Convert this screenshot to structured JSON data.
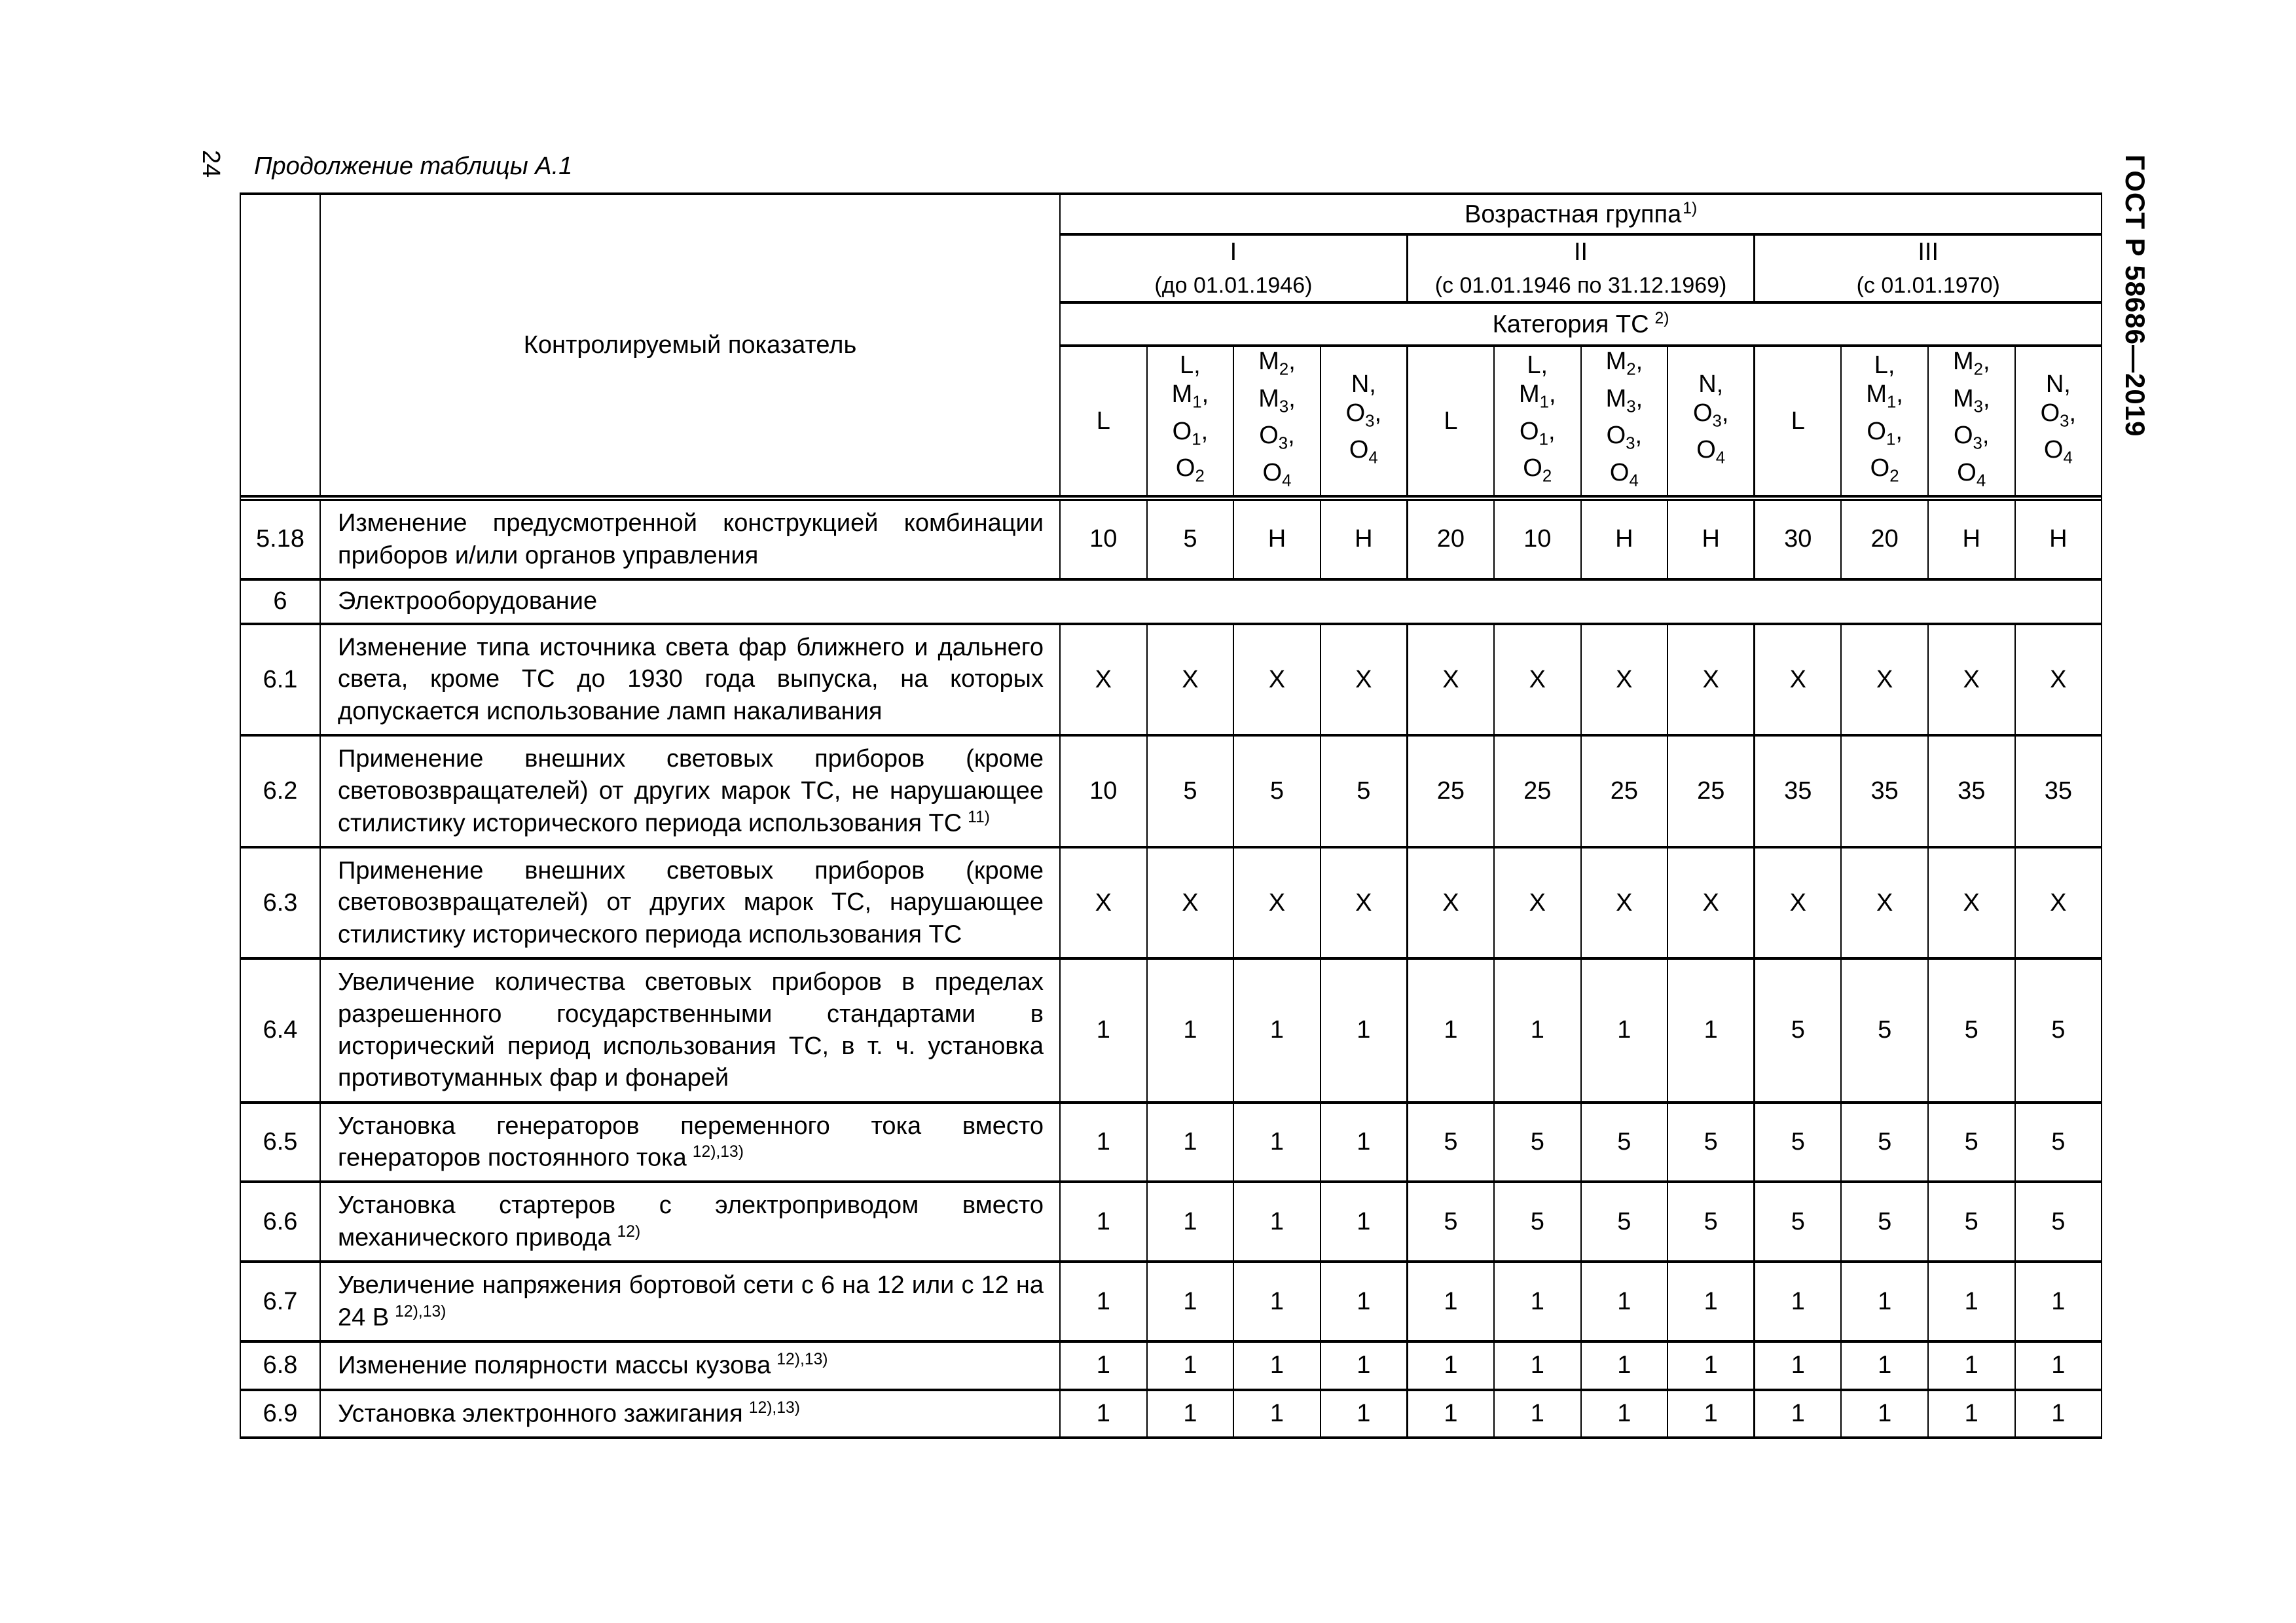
{
  "page": {
    "number": "24",
    "title": "Продолжение таблицы А.1",
    "standard": "ГОСТ Р 58686—2019"
  },
  "table": {
    "header": {
      "indicator": "Контролируемый показатель",
      "age_group": "Возрастная группа",
      "age_group_sup": "1)",
      "groups": [
        {
          "numeral": "I",
          "range": "(до 01.01.1946)"
        },
        {
          "numeral": "II",
          "range": "(с 01.01.1946 по 31.12.1969)"
        },
        {
          "numeral": "III",
          "range": "(с 01.01.1970)"
        }
      ],
      "category": "Категория ТС",
      "category_sup": "2)",
      "category_columns": [
        [
          {
            "t": "L"
          }
        ],
        [
          {
            "t": "L,"
          },
          {
            "t": "M",
            "s": "1",
            "p": ","
          },
          {
            "t": "O",
            "s": "1",
            "p": ","
          },
          {
            "t": "O",
            "s": "2"
          }
        ],
        [
          {
            "t": "M",
            "s": "2",
            "p": ","
          },
          {
            "t": "M",
            "s": "3",
            "p": ","
          },
          {
            "t": "O",
            "s": "3",
            "p": ","
          },
          {
            "t": "O",
            "s": "4"
          }
        ],
        [
          {
            "t": "N,"
          },
          {
            "t": "O",
            "s": "3",
            "p": ","
          },
          {
            "t": "O",
            "s": "4"
          }
        ]
      ]
    },
    "rows": [
      {
        "num": "5.18",
        "label": "Изменение предусмотренной конструкцией комбинации приборов и/или органов управления",
        "sup": "",
        "values": [
          "10",
          "5",
          "Н",
          "Н",
          "20",
          "10",
          "Н",
          "Н",
          "30",
          "20",
          "Н",
          "Н"
        ]
      },
      {
        "num": "6",
        "label": "Электрооборудование",
        "section": true
      },
      {
        "num": "6.1",
        "label": "Изменение типа источника света фар ближнего и дальнего света, кроме ТС до 1930 года выпуска, на которых допускается использование ламп накаливания",
        "sup": "",
        "values": [
          "Х",
          "Х",
          "Х",
          "Х",
          "Х",
          "Х",
          "Х",
          "Х",
          "Х",
          "Х",
          "Х",
          "Х"
        ]
      },
      {
        "num": "6.2",
        "label": "Применение внешних световых приборов (кроме световозвращателей) от других марок ТС, не нарушающее стилистику исторического периода использования ТС",
        "sup": "11)",
        "values": [
          "10",
          "5",
          "5",
          "5",
          "25",
          "25",
          "25",
          "25",
          "35",
          "35",
          "35",
          "35"
        ]
      },
      {
        "num": "6.3",
        "label": "Применение внешних световых приборов (кроме световозвращателей) от других марок ТС, нарушающее стилистику исторического периода использования ТС",
        "sup": "",
        "values": [
          "Х",
          "Х",
          "Х",
          "Х",
          "Х",
          "Х",
          "Х",
          "Х",
          "Х",
          "Х",
          "Х",
          "Х"
        ]
      },
      {
        "num": "6.4",
        "label": "Увеличение количества световых приборов в пределах разрешенного государственными стандартами в исторический период использования ТС, в т. ч. установка противотуманных фар и фонарей",
        "sup": "",
        "values": [
          "1",
          "1",
          "1",
          "1",
          "1",
          "1",
          "1",
          "1",
          "5",
          "5",
          "5",
          "5"
        ]
      },
      {
        "num": "6.5",
        "label": "Установка генераторов переменного тока вместо генераторов постоянного тока",
        "sup": "12),13)",
        "values": [
          "1",
          "1",
          "1",
          "1",
          "5",
          "5",
          "5",
          "5",
          "5",
          "5",
          "5",
          "5"
        ]
      },
      {
        "num": "6.6",
        "label": "Установка стартеров с электроприводом вместо механического привода",
        "sup": "12)",
        "values": [
          "1",
          "1",
          "1",
          "1",
          "5",
          "5",
          "5",
          "5",
          "5",
          "5",
          "5",
          "5"
        ]
      },
      {
        "num": "6.7",
        "label": "Увеличение напряжения бортовой сети с 6 на 12 или с 12 на 24 В",
        "sup": "12),13)",
        "values": [
          "1",
          "1",
          "1",
          "1",
          "1",
          "1",
          "1",
          "1",
          "1",
          "1",
          "1",
          "1"
        ]
      },
      {
        "num": "6.8",
        "label": "Изменение полярности массы кузова",
        "sup": "12),13)",
        "values": [
          "1",
          "1",
          "1",
          "1",
          "1",
          "1",
          "1",
          "1",
          "1",
          "1",
          "1",
          "1"
        ]
      },
      {
        "num": "6.9",
        "label": "Установка электронного зажигания",
        "sup": "12),13)",
        "values": [
          "1",
          "1",
          "1",
          "1",
          "1",
          "1",
          "1",
          "1",
          "1",
          "1",
          "1",
          "1"
        ]
      }
    ]
  }
}
